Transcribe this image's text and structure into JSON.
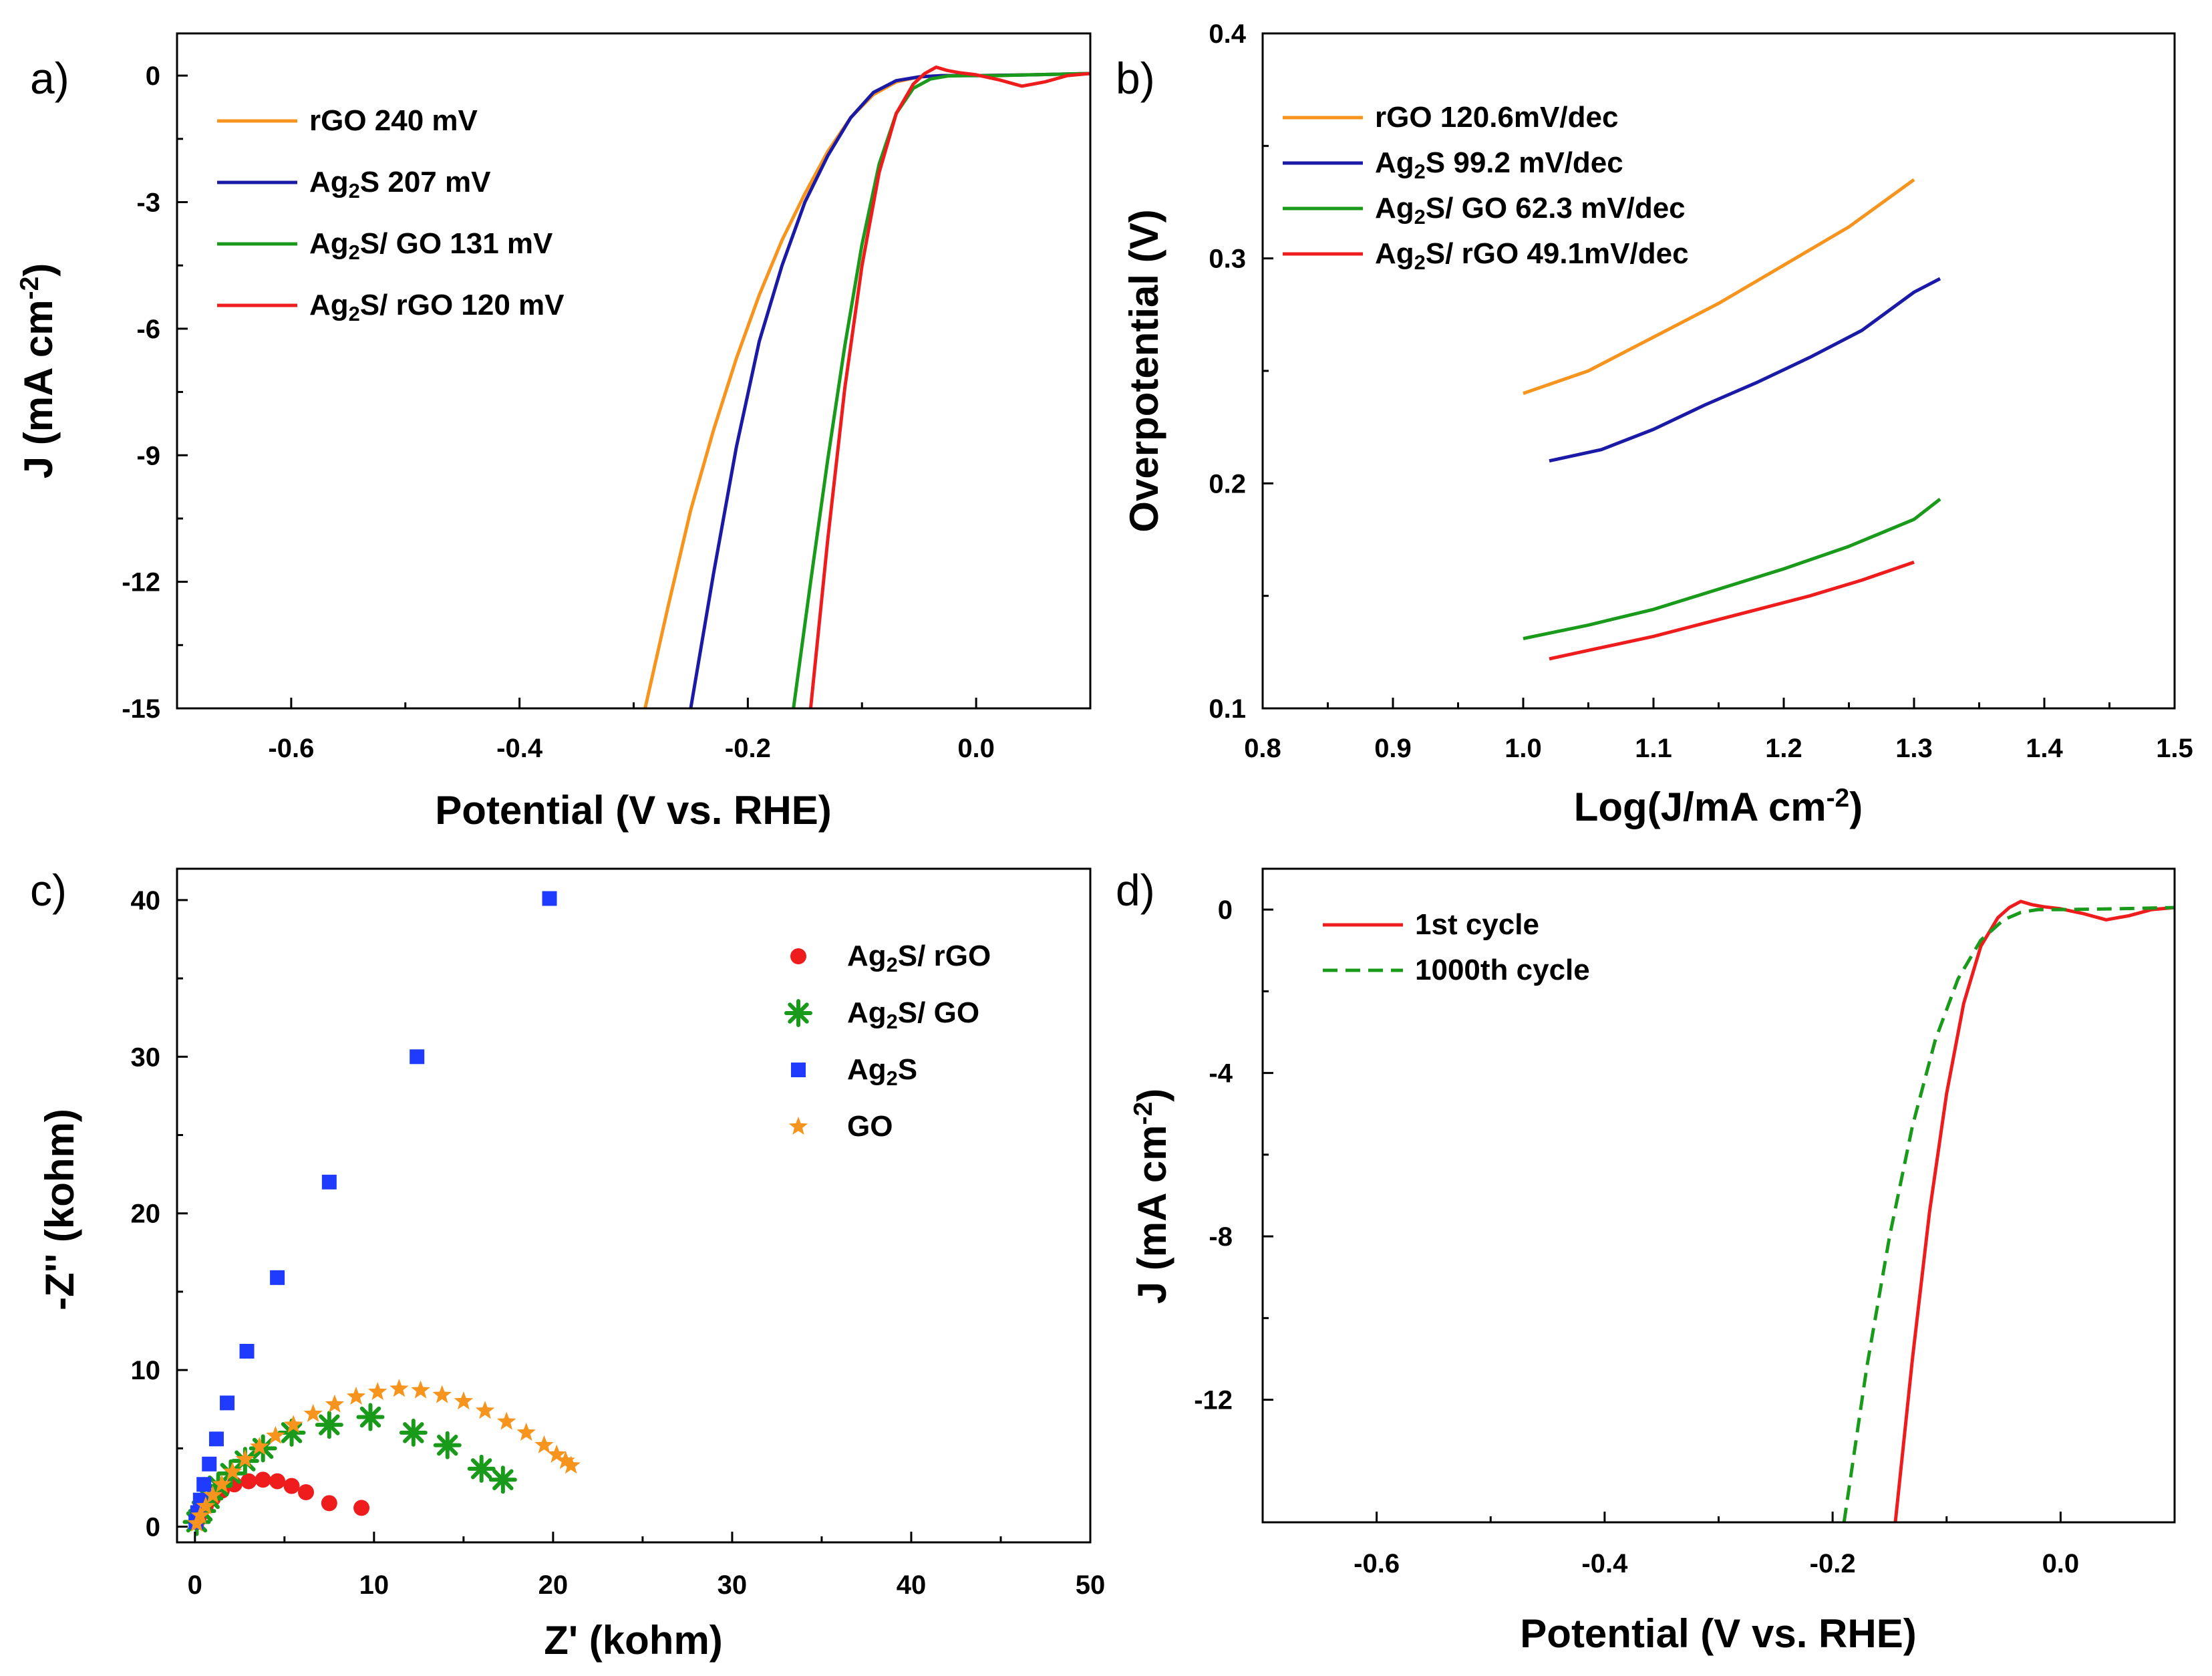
{
  "colors": {
    "rgo": "#f7941d",
    "ag2s": "#1a1aa6",
    "ag2s_go": "#1a9a1a",
    "ag2s_rgo": "#ee1c1c",
    "ag2s_marker": "#1f3bff"
  },
  "chart_data": [
    {
      "panel": "a)",
      "type": "line",
      "xlabel": "Potential (V vs. RHE)",
      "ylabel": "J (mA cm-2)",
      "ylabel_parts": {
        "main": "J (mA cm",
        "sup": "-2",
        "end": ")"
      },
      "xlim": [
        -0.7,
        0.1
      ],
      "ylim": [
        -15,
        1
      ],
      "xticks": [
        "-0.6",
        "-0.4",
        "-0.2",
        "0.0"
      ],
      "xtick_values": [
        -0.6,
        -0.4,
        -0.2,
        0.0
      ],
      "yticks": [
        "0",
        "-3",
        "-6",
        "-9",
        "-12",
        "-15"
      ],
      "ytick_values": [
        0,
        -3,
        -6,
        -9,
        -12,
        -15
      ],
      "legend_position": "top-left",
      "series": [
        {
          "name": "rGO 240 mV",
          "color_key": "rgo",
          "label_parts": [
            "rGO 240 mV"
          ],
          "x": [
            -0.29,
            -0.27,
            -0.25,
            -0.23,
            -0.21,
            -0.19,
            -0.17,
            -0.15,
            -0.13,
            -0.11,
            -0.09,
            -0.07,
            -0.05,
            -0.03,
            0.0,
            0.05,
            0.1
          ],
          "y": [
            -15.0,
            -12.6,
            -10.3,
            -8.4,
            -6.7,
            -5.2,
            -3.9,
            -2.8,
            -1.8,
            -1.0,
            -0.45,
            -0.15,
            -0.03,
            0.0,
            0.0,
            0.02,
            0.05
          ]
        },
        {
          "name": "Ag2S 207 mV",
          "color_key": "ag2s",
          "label_parts": [
            "Ag",
            "2",
            "S 207 mV"
          ],
          "x": [
            -0.25,
            -0.23,
            -0.21,
            -0.19,
            -0.17,
            -0.15,
            -0.13,
            -0.11,
            -0.09,
            -0.07,
            -0.05,
            -0.03,
            0.0,
            0.05,
            0.1
          ],
          "y": [
            -15.0,
            -11.8,
            -8.8,
            -6.3,
            -4.5,
            -3.0,
            -1.9,
            -1.0,
            -0.4,
            -0.12,
            -0.03,
            0.0,
            0.0,
            0.02,
            0.05
          ]
        },
        {
          "name": "Ag2S/ GO 131 mV",
          "color_key": "ag2s_go",
          "label_parts": [
            "Ag",
            "2",
            "S/ GO 131 mV"
          ],
          "x": [
            -0.16,
            -0.145,
            -0.13,
            -0.115,
            -0.1,
            -0.085,
            -0.07,
            -0.055,
            -0.04,
            -0.025,
            -0.01,
            0.02,
            0.05,
            0.1
          ],
          "y": [
            -15.0,
            -12.0,
            -9.1,
            -6.4,
            -4.0,
            -2.1,
            -0.9,
            -0.3,
            -0.08,
            -0.01,
            0.0,
            0.0,
            0.02,
            0.05
          ]
        },
        {
          "name": "Ag2S/ rGO 120 mV",
          "color_key": "ag2s_rgo",
          "label_parts": [
            "Ag",
            "2",
            "S/ rGO 120 mV"
          ],
          "x": [
            -0.145,
            -0.13,
            -0.115,
            -0.1,
            -0.085,
            -0.07,
            -0.055,
            -0.045,
            -0.035,
            -0.025,
            -0.015,
            0.0,
            0.02,
            0.04,
            0.06,
            0.08,
            0.1
          ],
          "y": [
            -15.0,
            -11.0,
            -7.4,
            -4.5,
            -2.3,
            -0.9,
            -0.2,
            0.05,
            0.2,
            0.12,
            0.07,
            0.02,
            -0.1,
            -0.25,
            -0.15,
            0.0,
            0.05
          ]
        }
      ]
    },
    {
      "panel": "b)",
      "type": "line",
      "xlabel": "Log(J/mA cm-2)",
      "xlabel_parts": {
        "main": "Log(J/mA cm",
        "sup": "-2",
        "end": ")"
      },
      "ylabel": "Overpotential (V)",
      "xlim": [
        0.8,
        1.5
      ],
      "ylim": [
        0.1,
        0.4
      ],
      "xticks": [
        "0.8",
        "0.9",
        "1.0",
        "1.1",
        "1.2",
        "1.3",
        "1.4",
        "1.5"
      ],
      "xtick_values": [
        0.8,
        0.9,
        1.0,
        1.1,
        1.2,
        1.3,
        1.4,
        1.5
      ],
      "yticks": [
        "0.1",
        "0.2",
        "0.3",
        "0.4"
      ],
      "ytick_values": [
        0.1,
        0.2,
        0.3,
        0.4
      ],
      "legend_position": "top-left",
      "series": [
        {
          "name": "rGO 120.6mV/dec",
          "color_key": "rgo",
          "label_parts": [
            "rGO 120.6mV/dec"
          ],
          "x": [
            1.0,
            1.05,
            1.1,
            1.15,
            1.2,
            1.25,
            1.3
          ],
          "y": [
            0.24,
            0.25,
            0.265,
            0.28,
            0.297,
            0.314,
            0.335
          ]
        },
        {
          "name": "Ag2S 99.2 mV/dec",
          "color_key": "ag2s",
          "label_parts": [
            "Ag",
            "2",
            "S 99.2 mV/dec"
          ],
          "x": [
            1.02,
            1.06,
            1.1,
            1.14,
            1.18,
            1.22,
            1.26,
            1.3,
            1.32
          ],
          "y": [
            0.21,
            0.215,
            0.224,
            0.235,
            0.245,
            0.256,
            0.268,
            0.285,
            0.291
          ]
        },
        {
          "name": "Ag2S/ GO 62.3 mV/dec",
          "color_key": "ag2s_go",
          "label_parts": [
            "Ag",
            "2",
            "S/ GO 62.3 mV/dec"
          ],
          "x": [
            1.0,
            1.05,
            1.1,
            1.15,
            1.2,
            1.25,
            1.3,
            1.32
          ],
          "y": [
            0.131,
            0.137,
            0.144,
            0.153,
            0.162,
            0.172,
            0.184,
            0.193
          ]
        },
        {
          "name": "Ag2S/ rGO 49.1mV/dec",
          "color_key": "ag2s_rgo",
          "label_parts": [
            "Ag",
            "2",
            "S/ rGO 49.1mV/dec"
          ],
          "x": [
            1.02,
            1.06,
            1.1,
            1.14,
            1.18,
            1.22,
            1.26,
            1.3
          ],
          "y": [
            0.122,
            0.127,
            0.132,
            0.138,
            0.144,
            0.15,
            0.157,
            0.165
          ]
        }
      ]
    },
    {
      "panel": "c)",
      "type": "scatter",
      "xlabel": "Z' (kohm)",
      "ylabel": "-Z'' (kohm)",
      "xlim": [
        -1,
        50
      ],
      "ylim": [
        -1,
        42
      ],
      "xticks": [
        "0",
        "10",
        "20",
        "30",
        "40",
        "50"
      ],
      "xtick_values": [
        0,
        10,
        20,
        30,
        40,
        50
      ],
      "yticks": [
        "0",
        "10",
        "20",
        "30",
        "40"
      ],
      "ytick_values": [
        0,
        10,
        20,
        30,
        40
      ],
      "legend_position": "right",
      "series": [
        {
          "name": "Ag2S/ rGO",
          "marker": "circle",
          "color_key": "ag2s_rgo",
          "label_parts": [
            "Ag",
            "2",
            "S/ rGO"
          ],
          "x": [
            0.1,
            0.3,
            0.6,
            1.0,
            1.5,
            2.2,
            3.0,
            3.8,
            4.6,
            5.4,
            6.2,
            7.5,
            9.3
          ],
          "y": [
            0.3,
            0.8,
            1.3,
            1.8,
            2.3,
            2.7,
            2.9,
            3.0,
            2.9,
            2.6,
            2.2,
            1.5,
            1.2
          ]
        },
        {
          "name": "Ag2S/ GO",
          "marker": "asterisk",
          "color_key": "ag2s_go",
          "label_parts": [
            "Ag",
            "2",
            "S/ GO"
          ],
          "x": [
            0.1,
            0.4,
            0.8,
            1.3,
            2.0,
            2.8,
            3.8,
            5.4,
            7.5,
            9.8,
            12.2,
            14.1,
            16.0,
            17.2
          ],
          "y": [
            0.3,
            1.0,
            1.8,
            2.6,
            3.4,
            4.2,
            5.0,
            6.0,
            6.5,
            7.0,
            6.0,
            5.2,
            3.7,
            3.0
          ]
        },
        {
          "name": "Ag2S",
          "marker": "square",
          "color_key": "ag2s_marker",
          "label_parts": [
            "Ag",
            "2",
            "S"
          ],
          "x": [
            0.05,
            0.15,
            0.3,
            0.5,
            0.8,
            1.2,
            1.8,
            2.9,
            4.6,
            7.5,
            12.4,
            19.8
          ],
          "y": [
            0.3,
            0.9,
            1.7,
            2.7,
            4.0,
            5.6,
            7.9,
            11.2,
            15.9,
            22.0,
            30.0,
            40.1
          ]
        },
        {
          "name": "GO",
          "marker": "star",
          "color_key": "rgo",
          "label_parts": [
            "GO"
          ],
          "x": [
            0.1,
            0.3,
            0.6,
            1.0,
            1.5,
            2.1,
            2.8,
            3.6,
            4.5,
            5.5,
            6.6,
            7.8,
            9.0,
            10.2,
            11.4,
            12.6,
            13.8,
            15.0,
            16.2,
            17.4,
            18.5,
            19.5,
            20.2,
            20.7,
            21.0
          ],
          "y": [
            0.2,
            0.7,
            1.3,
            2.0,
            2.7,
            3.5,
            4.3,
            5.1,
            5.8,
            6.5,
            7.2,
            7.8,
            8.3,
            8.6,
            8.8,
            8.7,
            8.4,
            8.0,
            7.4,
            6.7,
            6.0,
            5.2,
            4.6,
            4.2,
            3.9
          ]
        }
      ]
    },
    {
      "panel": "d)",
      "type": "line",
      "xlabel": "Potential (V vs. RHE)",
      "ylabel": "J (mA cm-2)",
      "ylabel_parts": {
        "main": "J (mA cm",
        "sup": "-2",
        "end": ")"
      },
      "xlim": [
        -0.7,
        0.1
      ],
      "ylim": [
        -15,
        1
      ],
      "xticks": [
        "-0.6",
        "-0.4",
        "-0.2",
        "0.0"
      ],
      "xtick_values": [
        -0.6,
        -0.4,
        -0.2,
        0.0
      ],
      "yticks": [
        "0",
        "-4",
        "-8",
        "-12"
      ],
      "ytick_values": [
        0,
        -4,
        -8,
        -12
      ],
      "legend_position": "top-left",
      "series": [
        {
          "name": "1st cycle",
          "color_key": "ag2s_rgo",
          "dashed": false,
          "label_parts": [
            "1st cycle"
          ],
          "x": [
            -0.145,
            -0.13,
            -0.115,
            -0.1,
            -0.085,
            -0.07,
            -0.055,
            -0.045,
            -0.035,
            -0.025,
            -0.015,
            0.0,
            0.02,
            0.04,
            0.06,
            0.08,
            0.1
          ],
          "y": [
            -15.0,
            -11.0,
            -7.4,
            -4.5,
            -2.3,
            -0.9,
            -0.2,
            0.05,
            0.2,
            0.12,
            0.07,
            0.02,
            -0.1,
            -0.25,
            -0.15,
            0.0,
            0.05
          ]
        },
        {
          "name": "1000th cycle",
          "color_key": "ag2s_go",
          "dashed": true,
          "label_parts": [
            "1000th cycle"
          ],
          "x": [
            -0.19,
            -0.17,
            -0.15,
            -0.13,
            -0.11,
            -0.09,
            -0.07,
            -0.05,
            -0.035,
            -0.02,
            0.0,
            0.05,
            0.1
          ],
          "y": [
            -15.0,
            -11.2,
            -8.0,
            -5.3,
            -3.2,
            -1.7,
            -0.75,
            -0.25,
            -0.07,
            0.0,
            0.0,
            0.02,
            0.05
          ]
        }
      ]
    }
  ]
}
